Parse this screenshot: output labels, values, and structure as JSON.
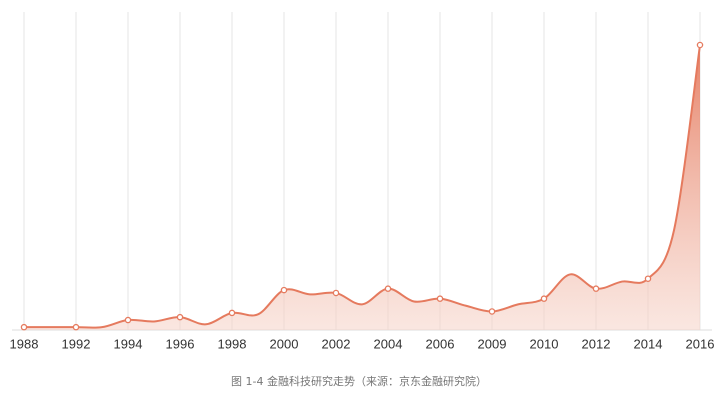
{
  "chart_data": {
    "type": "area",
    "title": "图 1-4  金融科技研究走势（来源：京东金融研究院）",
    "categories": [
      "1988",
      null,
      "1992",
      null,
      "1994",
      null,
      "1996",
      null,
      "1998",
      null,
      "2000",
      null,
      "2002",
      null,
      "2004",
      null,
      "2006",
      null,
      "2009",
      null,
      "2010",
      null,
      "2012",
      null,
      "2014",
      null,
      "2016"
    ],
    "values": [
      1,
      1,
      1,
      1,
      3.5,
      3,
      4.5,
      2,
      6,
      5.5,
      14,
      12.5,
      13,
      9,
      14.5,
      10,
      11,
      8.5,
      6.5,
      9,
      11,
      19.5,
      14.5,
      17,
      18,
      35,
      100
    ],
    "color": "#e57a5e",
    "ylim": [
      0,
      100
    ],
    "grid": true
  }
}
